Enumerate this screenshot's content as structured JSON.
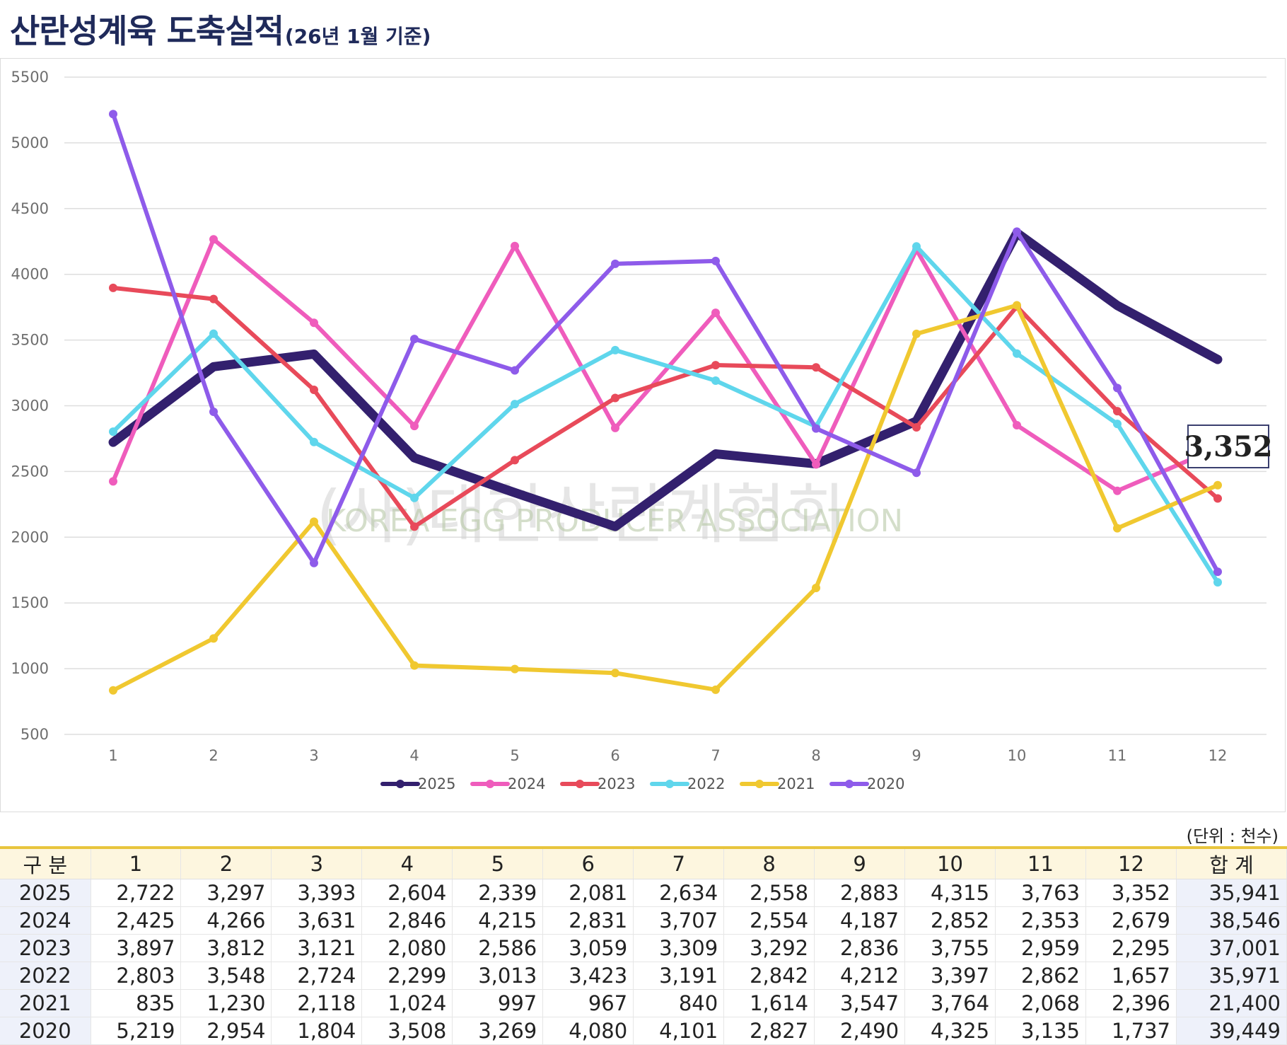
{
  "header": {
    "title": "산란성계육 도축실적",
    "subtitle": "(26년 1월 기준)"
  },
  "watermark": {
    "line1": "(사)대한산란계협회",
    "line2": "KOREA EGG PRODUCER ASSOCIATION"
  },
  "callout": {
    "label": "3,352"
  },
  "chart_data": {
    "type": "line",
    "title": "산란성계육 도축실적",
    "x": [
      1,
      2,
      3,
      4,
      5,
      6,
      7,
      8,
      9,
      10,
      11,
      12
    ],
    "ylim": [
      500,
      5500
    ],
    "yticks": [
      500,
      1000,
      1500,
      2000,
      2500,
      3000,
      3500,
      4000,
      4500,
      5000,
      5500
    ],
    "grid": true,
    "legend_position": "bottom",
    "series": [
      {
        "name": "2025",
        "color": "#33206e",
        "values": [
          2722,
          3297,
          3393,
          2604,
          2339,
          2081,
          2634,
          2558,
          2883,
          4315,
          3763,
          3352
        ]
      },
      {
        "name": "2024",
        "color": "#ef5cbc",
        "values": [
          2425,
          4266,
          3631,
          2846,
          4215,
          2831,
          3707,
          2554,
          4187,
          2852,
          2353,
          2679
        ]
      },
      {
        "name": "2023",
        "color": "#e84a5a",
        "values": [
          3897,
          3812,
          3121,
          2080,
          2586,
          3059,
          3309,
          3292,
          2836,
          3755,
          2959,
          2295
        ]
      },
      {
        "name": "2022",
        "color": "#5fd6ec",
        "values": [
          2803,
          3548,
          2724,
          2299,
          3013,
          3423,
          3191,
          2842,
          4212,
          3397,
          2862,
          1657
        ]
      },
      {
        "name": "2021",
        "color": "#f0c830",
        "values": [
          835,
          1230,
          2118,
          1024,
          997,
          967,
          840,
          1614,
          3547,
          3764,
          2068,
          2396
        ]
      },
      {
        "name": "2020",
        "color": "#8e5bea",
        "values": [
          5219,
          2954,
          1804,
          3508,
          3269,
          4080,
          4101,
          2827,
          2490,
          4325,
          3135,
          1737
        ]
      }
    ]
  },
  "table": {
    "unit": "(단위 : 천수)",
    "headers": [
      "구 분",
      "1",
      "2",
      "3",
      "4",
      "5",
      "6",
      "7",
      "8",
      "9",
      "10",
      "11",
      "12",
      "합 계"
    ],
    "rows": [
      {
        "year": "2025",
        "cells": [
          "2,722",
          "3,297",
          "3,393",
          "2,604",
          "2,339",
          "2,081",
          "2,634",
          "2,558",
          "2,883",
          "4,315",
          "3,763",
          "3,352"
        ],
        "total": "35,941"
      },
      {
        "year": "2024",
        "cells": [
          "2,425",
          "4,266",
          "3,631",
          "2,846",
          "4,215",
          "2,831",
          "3,707",
          "2,554",
          "4,187",
          "2,852",
          "2,353",
          "2,679"
        ],
        "total": "38,546"
      },
      {
        "year": "2023",
        "cells": [
          "3,897",
          "3,812",
          "3,121",
          "2,080",
          "2,586",
          "3,059",
          "3,309",
          "3,292",
          "2,836",
          "3,755",
          "2,959",
          "2,295"
        ],
        "total": "37,001"
      },
      {
        "year": "2022",
        "cells": [
          "2,803",
          "3,548",
          "2,724",
          "2,299",
          "3,013",
          "3,423",
          "3,191",
          "2,842",
          "4,212",
          "3,397",
          "2,862",
          "1,657"
        ],
        "total": "35,971"
      },
      {
        "year": "2021",
        "cells": [
          "835",
          "1,230",
          "2,118",
          "1,024",
          "997",
          "967",
          "840",
          "1,614",
          "3,547",
          "3,764",
          "2,068",
          "2,396"
        ],
        "total": "21,400"
      },
      {
        "year": "2020",
        "cells": [
          "5,219",
          "2,954",
          "1,804",
          "3,508",
          "3,269",
          "4,080",
          "4,101",
          "2,827",
          "2,490",
          "4,325",
          "3,135",
          "1,737"
        ],
        "total": "39,449"
      }
    ]
  }
}
